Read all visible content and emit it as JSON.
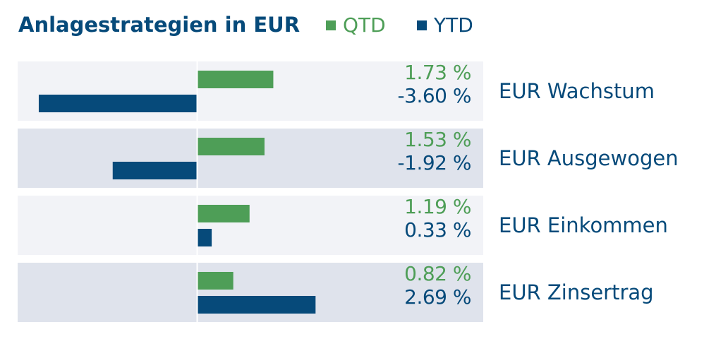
{
  "chart_data": {
    "type": "bar",
    "orientation": "horizontal",
    "title": "Anlagestrategien in EUR",
    "categories": [
      "EUR Wachstum",
      "EUR Ausgewogen",
      "EUR Einkommen",
      "EUR Zinsertrag"
    ],
    "series": [
      {
        "name": "QTD",
        "color": "#4e9e57",
        "values": [
          1.73,
          1.53,
          1.19,
          0.82
        ],
        "labels": [
          "1.73 %",
          "1.53 %",
          "1.19 %",
          "0.82 %"
        ]
      },
      {
        "name": "YTD",
        "color": "#064a7a",
        "values": [
          -3.6,
          -1.92,
          0.33,
          2.69
        ],
        "labels": [
          "-3.60 %",
          "-1.92 %",
          "0.33 %",
          "2.69 %"
        ]
      }
    ],
    "xlim": [
      -4.0,
      6.5
    ],
    "legend_position": "top",
    "grid": false,
    "row_colors": [
      "#f2f3f7",
      "#dfe3ec"
    ]
  },
  "colors": {
    "title": "#064a7a",
    "category_text": "#064a7a",
    "axis_line": "#ffffff"
  }
}
